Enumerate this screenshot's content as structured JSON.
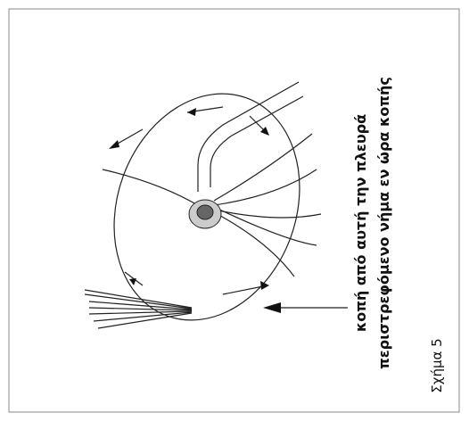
{
  "labels": {
    "line1": "κοπή από αυτή την πλευρά",
    "line2": "περιστρεφόμενο νήμα εν ώρα κοπής"
  },
  "caption": "Σχήμα 5"
}
